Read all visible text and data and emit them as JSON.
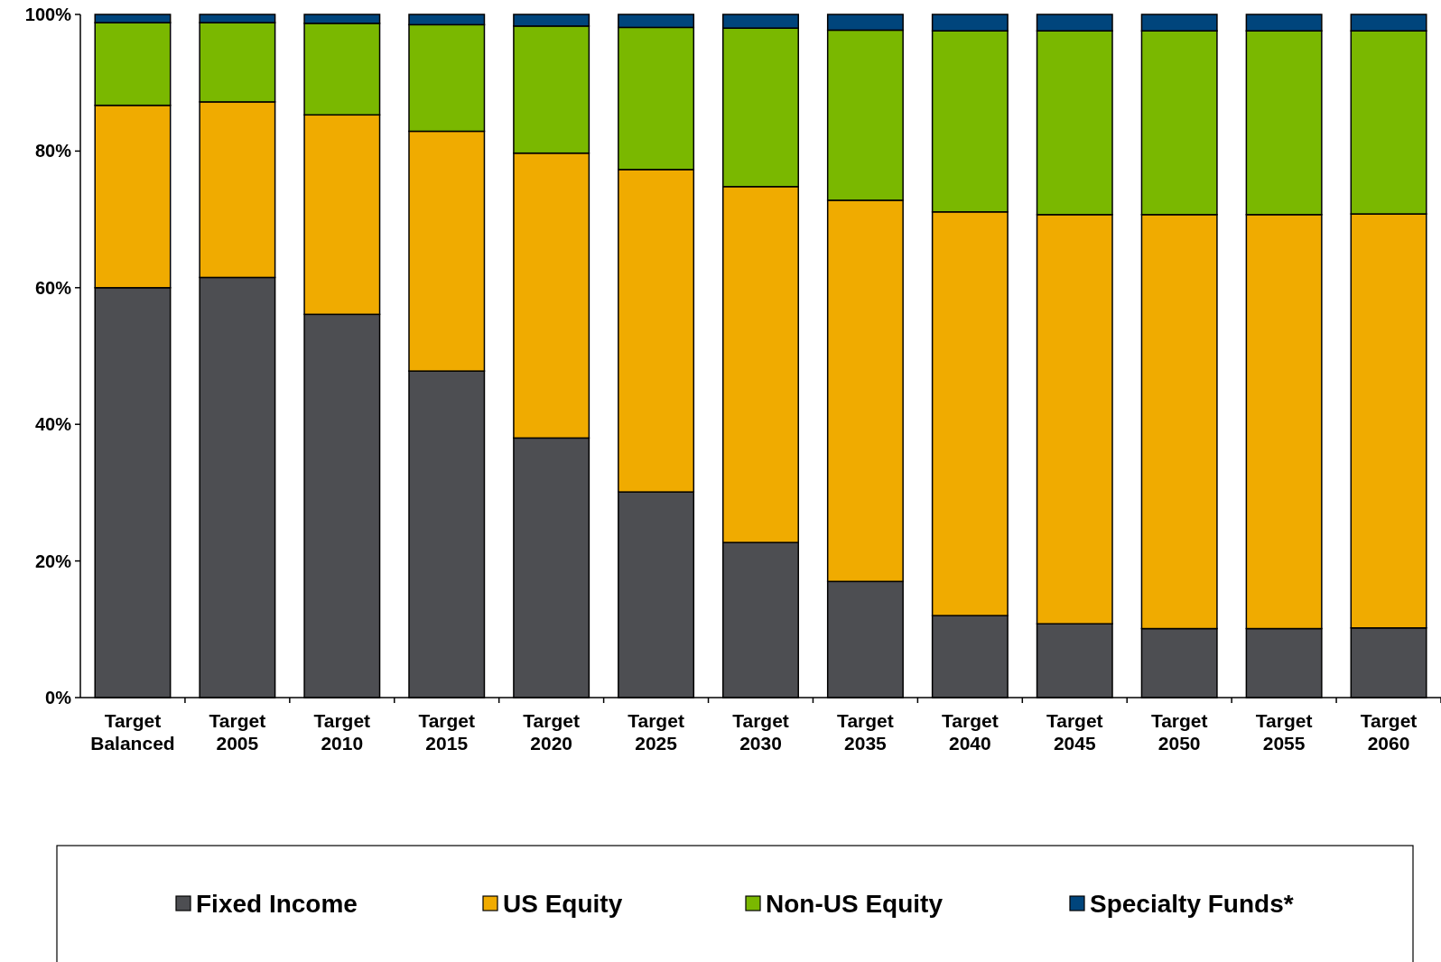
{
  "chart_data": {
    "type": "bar",
    "stacked": true,
    "categories": [
      "Target Balanced",
      "Target 2005",
      "Target 2010",
      "Target 2015",
      "Target 2020",
      "Target 2025",
      "Target 2030",
      "Target 2035",
      "Target 2040",
      "Target 2045",
      "Target 2050",
      "Target 2055",
      "Target 2060"
    ],
    "series": [
      {
        "name": "Fixed Income",
        "color": "#4d4e52",
        "values": [
          60.0,
          61.5,
          56.1,
          47.8,
          38.0,
          30.1,
          22.7,
          17.0,
          12.0,
          10.8,
          10.1,
          10.1,
          10.2
        ]
      },
      {
        "name": "US Equity",
        "color": "#f0ab00",
        "values": [
          26.7,
          25.7,
          29.2,
          35.1,
          41.7,
          47.2,
          52.1,
          55.8,
          59.1,
          59.9,
          60.6,
          60.6,
          60.6
        ]
      },
      {
        "name": "Non-US Equity",
        "color": "#7ab800",
        "values": [
          12.1,
          11.6,
          13.4,
          15.6,
          18.6,
          20.8,
          23.2,
          24.9,
          26.5,
          26.9,
          26.9,
          26.9,
          26.8
        ]
      },
      {
        "name": "Specialty Funds*",
        "color": "#00457c",
        "values": [
          1.2,
          1.2,
          1.3,
          1.5,
          1.7,
          1.9,
          2.0,
          2.3,
          2.4,
          2.4,
          2.4,
          2.4,
          2.4
        ]
      }
    ],
    "ylim": [
      0,
      100
    ],
    "yticks": [
      {
        "value": 0,
        "label": "0%"
      },
      {
        "value": 20,
        "label": "20%"
      },
      {
        "value": 40,
        "label": "40%"
      },
      {
        "value": 60,
        "label": "60%"
      },
      {
        "value": 80,
        "label": "80%"
      },
      {
        "value": 100,
        "label": "100%"
      }
    ],
    "grid": false,
    "legend": "bottom"
  }
}
